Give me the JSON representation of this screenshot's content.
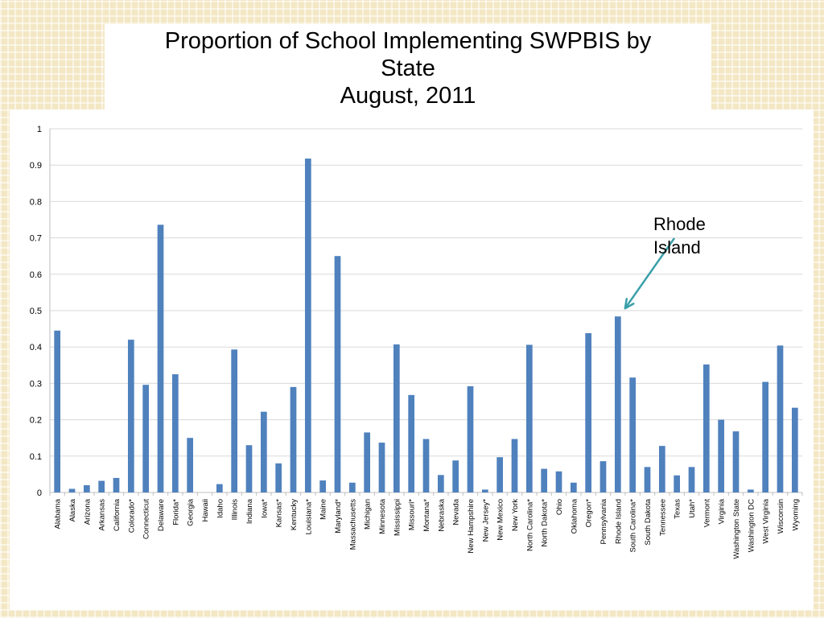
{
  "page": {
    "title_lines": [
      "Proportion of School Implementing SWPBIS by",
      "State",
      "August, 2011"
    ]
  },
  "annotation": {
    "lines": [
      "Rhode",
      "Island"
    ],
    "target": "Rhode Island",
    "arrow_color": "#3aa0aa"
  },
  "chart_data": {
    "type": "bar",
    "title": "Proportion of School Implementing SWPBIS by State August, 2011",
    "xlabel": "",
    "ylabel": "",
    "ylim": [
      0,
      1
    ],
    "yticks": [
      "0",
      "0.1",
      "0.2",
      "0.3",
      "0.4",
      "0.5",
      "0.6",
      "0.7",
      "0.8",
      "0.9",
      "1"
    ],
    "grid": true,
    "legend": "none",
    "bar_color": "#4f81bd",
    "categories": [
      "Alabama",
      "Alaska",
      "Arizona",
      "Arkansas",
      "California",
      "Colorado*",
      "Connecticut",
      "Delaware",
      "Florida*",
      "Georgia",
      "Hawaii",
      "Idaho",
      "Illinois",
      "Indiana",
      "Iowa*",
      "Kansas*",
      "Kentucky",
      "Louisiana*",
      "Maine",
      "Maryland*",
      "Massachusetts",
      "Michigan",
      "Minnesota",
      "Mississippi",
      "Missouri*",
      "Montana*",
      "Nebraska",
      "Nevada",
      "New Hampshire",
      "New Jersey*",
      "New Mexico",
      "New York",
      "North Carolina*",
      "North Dakota*",
      "Ohio",
      "Oklahoma",
      "Oregon*",
      "Pennsylvania",
      "Rhode Island",
      "South Carolina*",
      "South Dakota",
      "Tennessee",
      "Texas",
      "Utah*",
      "Vermont",
      "Virginia",
      "Washington State",
      "Washington DC",
      "West Virginia",
      "Wisconsin",
      "Wyoming"
    ],
    "values": [
      0.445,
      0.01,
      0.02,
      0.032,
      0.04,
      0.42,
      0.296,
      0.736,
      0.325,
      0.15,
      0.0,
      0.023,
      0.393,
      0.13,
      0.222,
      0.08,
      0.29,
      0.918,
      0.033,
      0.65,
      0.027,
      0.165,
      0.137,
      0.407,
      0.268,
      0.147,
      0.048,
      0.088,
      0.292,
      0.008,
      0.097,
      0.147,
      0.406,
      0.065,
      0.058,
      0.027,
      0.438,
      0.086,
      0.484,
      0.316,
      0.07,
      0.128,
      0.047,
      0.07,
      0.352,
      0.2,
      0.168,
      0.008,
      0.304,
      0.404,
      0.233
    ]
  }
}
